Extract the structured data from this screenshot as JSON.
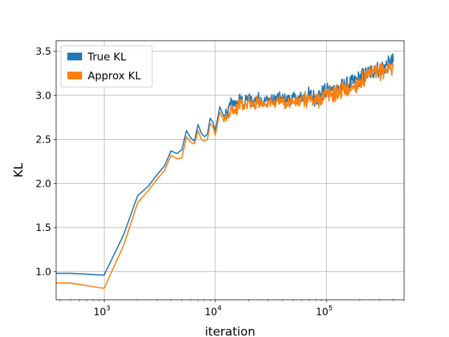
{
  "chart_data": {
    "type": "line",
    "title": "",
    "xlabel": "iteration",
    "ylabel": "KL",
    "xscale": "log",
    "xlim": [
      370,
      500000
    ],
    "ylim": [
      0.68,
      3.62
    ],
    "grid": true,
    "legend_position": "top-left",
    "x_ticks": [
      {
        "value": 1000,
        "base": "10",
        "exp": "3"
      },
      {
        "value": 10000,
        "base": "10",
        "exp": "4"
      },
      {
        "value": 100000,
        "base": "10",
        "exp": "5"
      }
    ],
    "y_ticks": [
      "1.0",
      "1.5",
      "2.0",
      "2.5",
      "3.0",
      "3.5"
    ],
    "series": [
      {
        "name": "True KL",
        "color": "#1f77b4",
        "x": [
          370,
          500,
          1000,
          1500,
          2000,
          2500,
          3000,
          3500,
          4000,
          4500,
          5000,
          5500,
          6000,
          6500,
          7000,
          7500,
          8000,
          8500,
          9000,
          9500,
          10000,
          11000,
          12000,
          13000,
          14000,
          15000,
          16000,
          17000,
          18000,
          19000,
          20000,
          22000,
          24000,
          26000,
          28000,
          30000,
          33000,
          36000,
          40000,
          45000,
          50000,
          55000,
          60000,
          70000,
          80000,
          90000,
          100000,
          120000,
          140000,
          160000,
          180000,
          200000,
          230000,
          260000,
          300000,
          350000,
          400000
        ],
        "y": [
          0.98,
          0.98,
          0.96,
          1.42,
          1.86,
          1.97,
          2.1,
          2.2,
          2.37,
          2.34,
          2.38,
          2.6,
          2.52,
          2.48,
          2.67,
          2.57,
          2.53,
          2.56,
          2.74,
          2.7,
          2.6,
          2.87,
          2.75,
          2.8,
          2.95,
          2.88,
          2.92,
          2.98,
          2.89,
          2.95,
          2.97,
          2.92,
          2.98,
          2.95,
          2.93,
          2.96,
          2.94,
          2.98,
          2.96,
          2.95,
          2.97,
          2.96,
          2.98,
          3.0,
          2.97,
          3.02,
          3.04,
          3.06,
          3.1,
          3.12,
          3.15,
          3.2,
          3.24,
          3.28,
          3.3,
          3.34,
          3.38
        ]
      },
      {
        "name": "Approx KL",
        "color": "#ff7f0e",
        "x": [
          370,
          500,
          1000,
          1500,
          2000,
          2500,
          3000,
          3500,
          4000,
          4500,
          5000,
          5500,
          6000,
          6500,
          7000,
          7500,
          8000,
          8500,
          9000,
          9500,
          10000,
          11000,
          12000,
          13000,
          14000,
          15000,
          16000,
          17000,
          18000,
          19000,
          20000,
          22000,
          24000,
          26000,
          28000,
          30000,
          33000,
          36000,
          40000,
          45000,
          50000,
          55000,
          60000,
          70000,
          80000,
          90000,
          100000,
          120000,
          140000,
          160000,
          180000,
          200000,
          230000,
          260000,
          300000,
          350000,
          400000
        ],
        "y": [
          0.87,
          0.87,
          0.81,
          1.3,
          1.78,
          1.92,
          2.05,
          2.15,
          2.32,
          2.28,
          2.29,
          2.53,
          2.47,
          2.45,
          2.6,
          2.5,
          2.48,
          2.5,
          2.68,
          2.65,
          2.55,
          2.81,
          2.7,
          2.75,
          2.88,
          2.82,
          2.87,
          2.92,
          2.85,
          2.9,
          2.93,
          2.88,
          2.94,
          2.91,
          2.9,
          2.93,
          2.9,
          2.94,
          2.92,
          2.91,
          2.93,
          2.92,
          2.94,
          2.96,
          2.93,
          2.98,
          3.0,
          3.02,
          3.06,
          3.08,
          3.11,
          3.16,
          3.2,
          3.24,
          3.26,
          3.3,
          3.32
        ]
      }
    ]
  }
}
